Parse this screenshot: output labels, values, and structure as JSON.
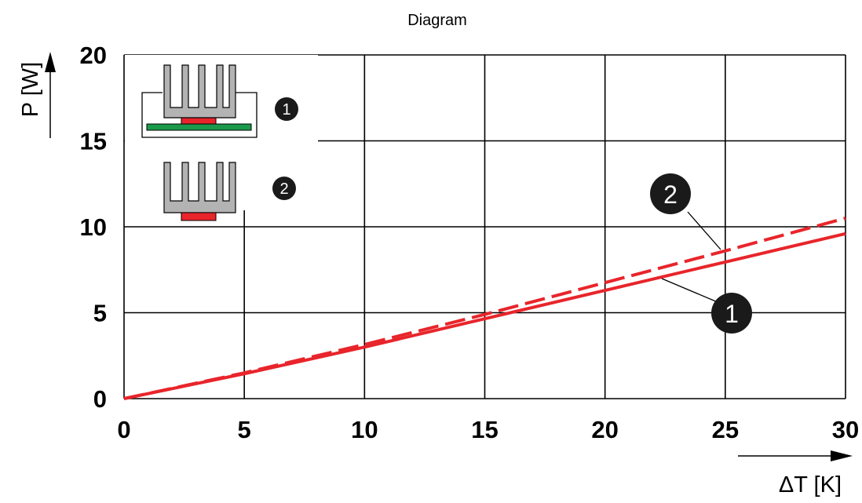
{
  "chart_data": {
    "type": "line",
    "title": "Diagram",
    "xlabel": "ΔT [K]",
    "ylabel": "P [W]",
    "xlim": [
      0,
      30
    ],
    "ylim": [
      0,
      20
    ],
    "x_ticks": [
      0,
      5,
      10,
      15,
      20,
      25,
      30
    ],
    "y_ticks": [
      0,
      5,
      10,
      15,
      20
    ],
    "x_tick_labels": [
      "0",
      "5",
      "10",
      "15",
      "20",
      "25",
      "30"
    ],
    "y_tick_labels": [
      "0",
      "5",
      "10",
      "15",
      "20"
    ],
    "grid": true,
    "series": [
      {
        "name": "1",
        "style": "solid",
        "color": "#e8252b",
        "x": [
          0,
          5,
          10,
          15,
          20,
          25,
          30
        ],
        "y": [
          0,
          1.45,
          3.0,
          4.65,
          6.3,
          7.95,
          9.6
        ]
      },
      {
        "name": "2",
        "style": "dashed",
        "color": "#e8252b",
        "x": [
          0,
          5,
          10,
          15,
          20,
          25,
          30
        ],
        "y": [
          0,
          1.5,
          3.15,
          4.9,
          6.75,
          8.6,
          10.5
        ]
      }
    ],
    "legend": [
      {
        "marker": "1",
        "description": "heat sink with board"
      },
      {
        "marker": "2",
        "description": "heat sink only"
      }
    ],
    "annotations": [
      {
        "label": "2",
        "series": "2",
        "x": 25,
        "y": 8.6
      },
      {
        "label": "1",
        "series": "1",
        "x": 22.5,
        "y": 7.0
      }
    ]
  },
  "colors": {
    "curve": "#e8252b",
    "heatsink": "#b3b3b3",
    "board": "#1a9a4a",
    "badge": "#1a1a1a"
  }
}
